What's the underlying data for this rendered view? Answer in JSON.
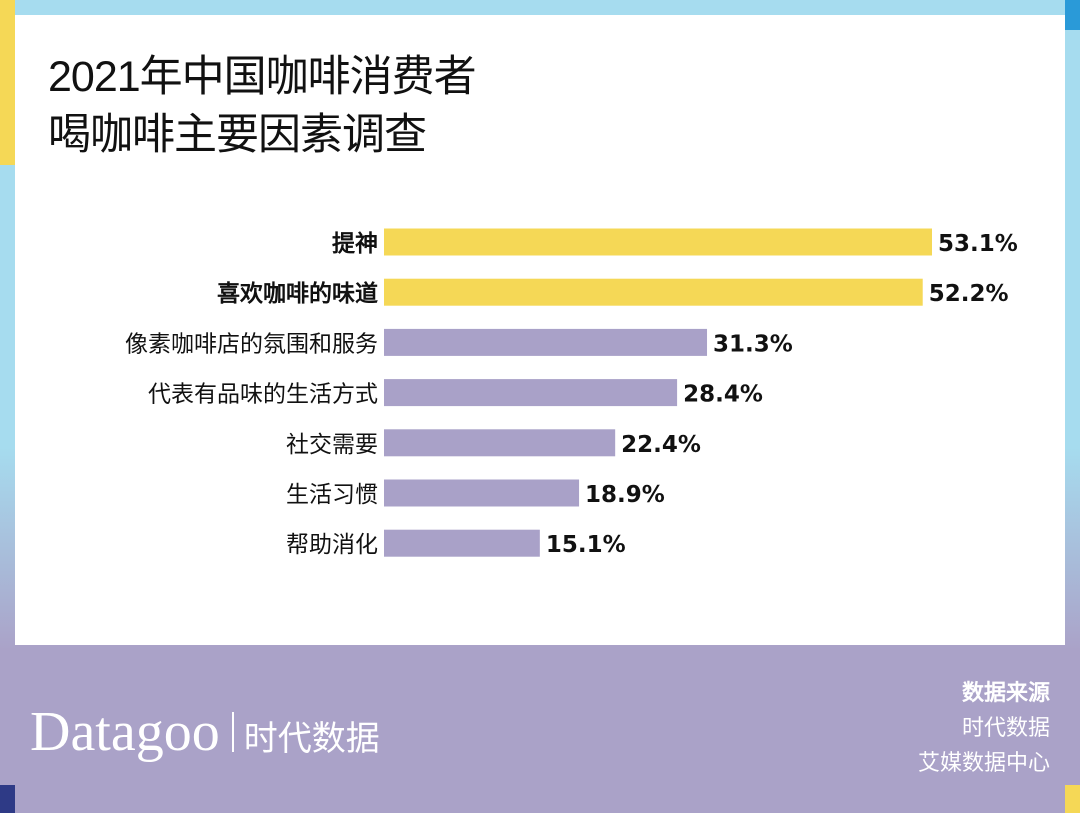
{
  "title_lines": [
    "2021年中国咖啡消费者",
    "喝咖啡主要因素调查"
  ],
  "colors": {
    "highlight": "#f5d856",
    "bar": "#a9a1c8",
    "footer": "#aaa2c8",
    "frame": "#a6dcef"
  },
  "chart_data": {
    "type": "bar",
    "orientation": "horizontal",
    "categories": [
      "提神",
      "喜欢咖啡的味道",
      "像素咖啡店的氛围和服务",
      "代表有品味的生活方式",
      "社交需要",
      "生活习惯",
      "帮助消化"
    ],
    "values": [
      53.1,
      52.2,
      31.3,
      28.4,
      22.4,
      18.9,
      15.1
    ],
    "value_labels": [
      "53.1%",
      "52.2%",
      "31.3%",
      "28.4%",
      "22.4%",
      "18.9%",
      "15.1%"
    ],
    "highlighted": [
      true,
      true,
      false,
      false,
      false,
      false,
      false
    ],
    "unit": "%",
    "grid": false
  },
  "footer": {
    "logo_text": "Datagoo",
    "logo_cn": "时代数据",
    "source_heading": "数据来源",
    "sources": [
      "时代数据",
      "艾媒数据中心"
    ]
  }
}
